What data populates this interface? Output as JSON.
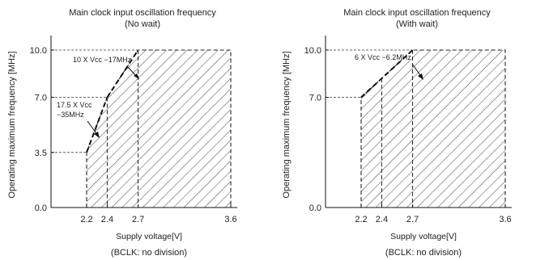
{
  "chart_data": [
    {
      "type": "area",
      "title": "Main clock input oscillation frequency",
      "subtitle": "(No wait)",
      "xlabel": "Supply voltage[V]",
      "xlabel2": "(BCLK: no division)",
      "ylabel": "Operating maximum frequency [MHz]",
      "xlim": [
        2.2,
        3.6
      ],
      "ylim": [
        0.0,
        10.0
      ],
      "x_ticks": [
        "2.2",
        "2.4",
        "2.7",
        "3.6"
      ],
      "y_ticks": [
        "0.0",
        "3.5",
        "7.0",
        "10.0"
      ],
      "boundary": [
        [
          2.2,
          3.5
        ],
        [
          2.4,
          7.0
        ],
        [
          2.7,
          10.0
        ],
        [
          3.6,
          10.0
        ]
      ],
      "annotations": [
        {
          "text": "10 X Vcc −17MHz",
          "at": [
            2.55,
            8.5
          ]
        },
        {
          "text": "17.5 X Vcc",
          "at": [
            2.3,
            5.25
          ]
        },
        {
          "text": "−35MHz",
          "at": [
            2.3,
            5.25
          ]
        }
      ]
    },
    {
      "type": "area",
      "title": "Main clock input oscillation frequency",
      "subtitle": "(With wait)",
      "xlabel": "Supply voltage[V]",
      "xlabel2": "(BCLK: no division)",
      "ylabel": "Operating maximum frequency [MHz]",
      "xlim": [
        2.2,
        3.6
      ],
      "ylim": [
        0.0,
        10.0
      ],
      "x_ticks": [
        "2.2",
        "2.4",
        "2.7",
        "3.6"
      ],
      "y_ticks": [
        "0.0",
        "7.0",
        "10.0"
      ],
      "boundary": [
        [
          2.2,
          7.0
        ],
        [
          2.7,
          10.0
        ],
        [
          3.6,
          10.0
        ]
      ],
      "annotations": [
        {
          "text": "6 X Vcc −6.2MHz",
          "at": [
            2.45,
            8.5
          ]
        }
      ]
    }
  ]
}
